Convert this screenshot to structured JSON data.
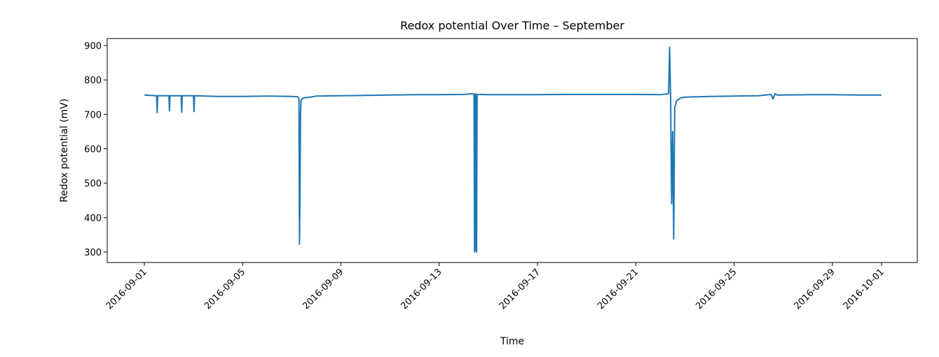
{
  "chart_data": {
    "type": "line",
    "title": "Redox potential Over Time – September",
    "xlabel": "Time",
    "ylabel": "Redox potential (mV)",
    "xlim": [
      "2016-08-30",
      "2016-10-01"
    ],
    "ylim": [
      270,
      920
    ],
    "grid": false,
    "legend": "none",
    "color": "#1f77b4",
    "x_ticks": [
      "2016-09-01",
      "2016-09-05",
      "2016-09-09",
      "2016-09-13",
      "2016-09-17",
      "2016-09-21",
      "2016-09-25",
      "2016-09-29",
      "2016-10-01"
    ],
    "y_ticks": [
      300,
      400,
      500,
      600,
      700,
      800,
      900
    ],
    "series": [
      {
        "x": [
          "2016-09-01 00:00",
          "2016-09-01 12:00",
          "2016-09-01 12:30",
          "2016-09-01 13:00",
          "2016-09-02 00:00",
          "2016-09-02 00:30",
          "2016-09-02 01:00",
          "2016-09-02 12:00",
          "2016-09-02 12:30",
          "2016-09-02 13:00",
          "2016-09-03 00:00",
          "2016-09-03 00:30",
          "2016-09-03 01:00",
          "2016-09-04 00:00",
          "2016-09-05 00:00",
          "2016-09-06 00:00",
          "2016-09-07 00:00",
          "2016-09-07 06:00",
          "2016-09-07 07:00",
          "2016-09-07 07:30",
          "2016-09-07 08:00",
          "2016-09-07 08:30",
          "2016-09-07 09:00",
          "2016-09-07 10:00",
          "2016-09-07 12:00",
          "2016-09-07 18:00",
          "2016-09-08 00:00",
          "2016-09-09 00:00",
          "2016-09-10 00:00",
          "2016-09-11 00:00",
          "2016-09-12 00:00",
          "2016-09-13 00:00",
          "2016-09-14 00:00",
          "2016-09-14 09:00",
          "2016-09-14 10:00",
          "2016-09-14 10:30",
          "2016-09-14 11:00",
          "2016-09-14 11:30",
          "2016-09-14 12:00",
          "2016-09-14 12:30",
          "2016-09-14 13:00",
          "2016-09-14 14:00",
          "2016-09-15 00:00",
          "2016-09-16 00:00",
          "2016-09-17 00:00",
          "2016-09-18 00:00",
          "2016-09-19 00:00",
          "2016-09-20 00:00",
          "2016-09-21 00:00",
          "2016-09-22 00:00",
          "2016-09-22 08:00",
          "2016-09-22 09:00",
          "2016-09-22 10:00",
          "2016-09-22 11:00",
          "2016-09-22 12:00",
          "2016-09-22 13:00",
          "2016-09-22 14:00",
          "2016-09-22 16:00",
          "2016-09-22 20:00",
          "2016-09-23 00:00",
          "2016-09-24 00:00",
          "2016-09-25 00:00",
          "2016-09-26 00:00",
          "2016-09-26 12:00",
          "2016-09-26 14:00",
          "2016-09-26 16:00",
          "2016-09-26 18:00",
          "2016-09-27 00:00",
          "2016-09-28 00:00",
          "2016-09-29 00:00",
          "2016-09-30 00:00",
          "2016-10-01 00:00"
        ],
        "y": [
          756,
          754,
          705,
          754,
          754,
          710,
          754,
          754,
          706,
          754,
          754,
          708,
          754,
          752,
          752,
          753,
          752,
          751,
          745,
          323,
          450,
          700,
          740,
          745,
          748,
          750,
          753,
          754,
          755,
          756,
          757,
          757,
          758,
          760,
          755,
          300,
          760,
          305,
          758,
          300,
          758,
          758,
          757,
          757,
          757,
          758,
          758,
          758,
          758,
          757,
          760,
          895,
          745,
          440,
          650,
          338,
          720,
          740,
          748,
          750,
          752,
          753,
          754,
          758,
          745,
          760,
          756,
          756,
          757,
          757,
          756,
          756
        ]
      }
    ]
  }
}
